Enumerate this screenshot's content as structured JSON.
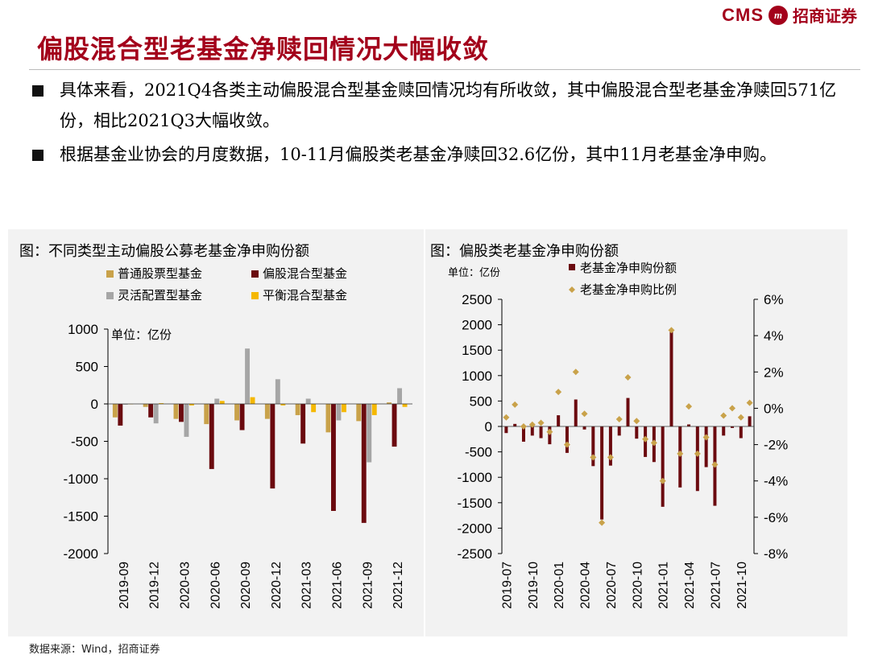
{
  "header": {
    "brand_text": "CMS",
    "brand_logo_text": "m",
    "brand_cn": "招商证券",
    "title": "偏股混合型老基金净赎回情况大幅收敛"
  },
  "bullets": [
    "具体来看，2021Q4各类主动偏股混合型基金赎回情况均有所收敛，其中偏股混合型老基金净赎回571亿份，相比2021Q3大幅收敛。",
    "根据基金业协会的月度数据，10-11月偏股类老基金净赎回32.6亿份，其中11月老基金净申购。"
  ],
  "source": "数据来源：Wind，招商证券",
  "colors": {
    "accent": "#a3001b",
    "series1": "#c9a24a",
    "series2": "#6b0a0f",
    "series3": "#a6a6a6",
    "series4": "#f5b800",
    "ratio": "#c9a24a"
  },
  "chart_data": [
    {
      "type": "bar",
      "title": "图：不同类型主动偏股公募老基金净申购份额",
      "unit_label": "单位：亿份",
      "categories": [
        "2019-09",
        "2019-12",
        "2020-03",
        "2020-06",
        "2020-09",
        "2020-12",
        "2021-03",
        "2021-06",
        "2021-09",
        "2021-12"
      ],
      "ylim": [
        -2000,
        1000
      ],
      "yticks": [
        1000,
        500,
        0,
        -500,
        -1000,
        -1500,
        -2000
      ],
      "legend": [
        "普通股票型基金",
        "偏股混合型基金",
        "灵活配置型基金",
        "平衡混合型基金"
      ],
      "series": [
        {
          "name": "普通股票型基金",
          "values": [
            -180,
            -40,
            -200,
            -270,
            -220,
            -200,
            -150,
            -380,
            -230,
            20
          ]
        },
        {
          "name": "偏股混合型基金",
          "values": [
            -290,
            -180,
            -240,
            -870,
            -350,
            -1130,
            -530,
            -1430,
            -1590,
            -571
          ]
        },
        {
          "name": "灵活配置型基金",
          "values": [
            -10,
            -260,
            -440,
            70,
            740,
            330,
            70,
            -220,
            -780,
            210
          ]
        },
        {
          "name": "平衡混合型基金",
          "values": [
            0,
            10,
            -20,
            40,
            90,
            -20,
            -110,
            -110,
            -150,
            -40
          ]
        }
      ]
    },
    {
      "type": "bar",
      "title": "图：偏股类老基金净申购份额",
      "unit_label": "单位：亿份",
      "ylim": [
        -2500,
        2500
      ],
      "yticks": [
        2500,
        2000,
        1500,
        1000,
        500,
        0,
        -500,
        -1000,
        -1500,
        -2000,
        -2500
      ],
      "y2lim": [
        -8,
        6
      ],
      "y2ticks": [
        6,
        4,
        2,
        0,
        -2,
        -4,
        -6,
        -8
      ],
      "y2tick_labels": [
        "6%",
        "4%",
        "2%",
        "0%",
        "-2%",
        "-4%",
        "-6%",
        "-8%"
      ],
      "xtick_labels": [
        "2019-07",
        "2019-10",
        "2020-01",
        "2020-04",
        "2020-07",
        "2020-10",
        "2021-01",
        "2021-04",
        "2021-07",
        "2021-10"
      ],
      "legend": [
        "老基金净申购份额",
        "老基金净申购比例"
      ],
      "x": [
        "2019-07",
        "2019-08",
        "2019-09",
        "2019-10",
        "2019-11",
        "2019-12",
        "2020-01",
        "2020-02",
        "2020-03",
        "2020-04",
        "2020-05",
        "2020-06",
        "2020-07",
        "2020-08",
        "2020-09",
        "2020-10",
        "2020-11",
        "2020-12",
        "2021-01",
        "2021-02",
        "2021-03",
        "2021-04",
        "2021-05",
        "2021-06",
        "2021-07",
        "2021-08",
        "2021-09",
        "2021-10",
        "2021-11"
      ],
      "series": [
        {
          "name": "老基金净申购份额",
          "values": [
            -130,
            50,
            -300,
            -180,
            -230,
            -350,
            220,
            -520,
            530,
            -60,
            -780,
            -1830,
            -770,
            -180,
            560,
            -240,
            -600,
            -700,
            -1580,
            1870,
            -1200,
            40,
            -1270,
            -800,
            -1560,
            -180,
            -30,
            -230,
            200
          ]
        },
        {
          "name": "老基金净申购比例",
          "values": [
            -0.5,
            0.2,
            -1.0,
            -0.9,
            -0.8,
            -1.3,
            0.9,
            -2.0,
            2.0,
            -0.3,
            -2.7,
            -6.3,
            -2.7,
            -0.6,
            1.7,
            -0.7,
            -1.7,
            -1.9,
            -4.0,
            4.3,
            -2.5,
            0.1,
            -2.5,
            -1.6,
            -3.1,
            -0.4,
            0.0,
            -0.5,
            0.3
          ]
        }
      ]
    }
  ]
}
